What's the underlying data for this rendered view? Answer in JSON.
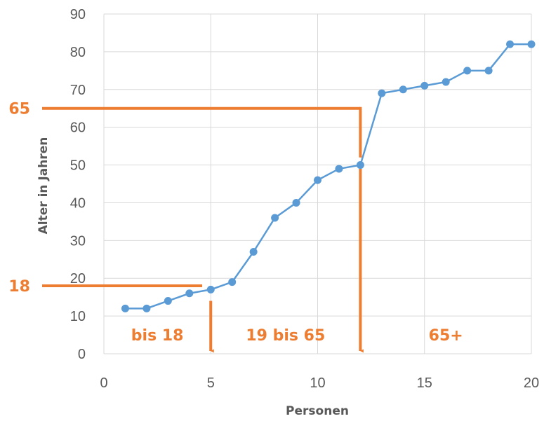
{
  "chart_data": {
    "type": "line",
    "title": "",
    "xlabel": "Personen",
    "ylabel": "Alter in Jahren",
    "xlim": [
      0,
      20
    ],
    "ylim": [
      0,
      90
    ],
    "x_ticks": [
      0,
      5,
      10,
      15,
      20
    ],
    "y_ticks": [
      0,
      10,
      20,
      30,
      40,
      50,
      60,
      70,
      80,
      90
    ],
    "grid": true,
    "legend": "none",
    "series": [
      {
        "x": [
          1,
          2,
          3,
          4,
          5,
          6,
          7,
          8,
          9,
          10,
          11,
          12,
          13,
          14,
          15,
          16,
          17,
          18,
          19,
          20
        ],
        "values": [
          12,
          12,
          14,
          16,
          17,
          19,
          27,
          36,
          40,
          46,
          49,
          50,
          69,
          70,
          71,
          72,
          75,
          75,
          82,
          82
        ],
        "color": "#5B9BD5"
      }
    ],
    "annotations": {
      "color": "#ED7D31",
      "threshold_labels": [
        {
          "text": "65",
          "y": 65,
          "drop_x": 12
        },
        {
          "text": "18",
          "y": 18,
          "drop_x": 5
        }
      ],
      "group_labels": [
        {
          "text": "bis 18",
          "x": 2.5
        },
        {
          "text": "19 bis 65",
          "x": 8.5
        },
        {
          "text": "65+",
          "x": 16
        }
      ],
      "group_label_y": 5
    }
  }
}
